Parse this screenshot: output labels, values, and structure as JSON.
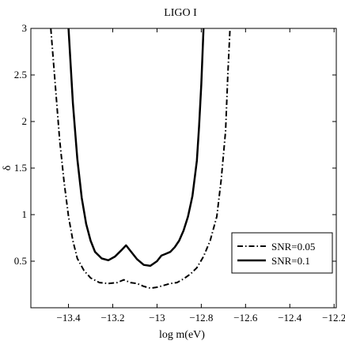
{
  "chart_data": {
    "type": "line",
    "title": "LIGO I",
    "xlabel": "log m(eV)",
    "ylabel": "δ",
    "xlim": [
      -13.57,
      -12.19
    ],
    "ylim": [
      0.0,
      3.0
    ],
    "xticks": [
      -13.4,
      -13.2,
      -13.0,
      -12.8,
      -12.6,
      -12.4,
      -12.2
    ],
    "xtick_labels": [
      "−13.4",
      "−13.2",
      "−13",
      "−12.8",
      "−12.6",
      "−12.4",
      "−12.2"
    ],
    "yticks": [
      0.5,
      1.0,
      1.5,
      2.0,
      2.5,
      3.0
    ],
    "ytick_labels": [
      "0.5",
      "1",
      "1.5",
      "2",
      "2.5",
      "3"
    ],
    "grid": false,
    "legend_position": "lower-right",
    "series": [
      {
        "name": "SNR=0.05",
        "style": "dashdot",
        "x": [
          -13.48,
          -13.46,
          -13.44,
          -13.42,
          -13.4,
          -13.38,
          -13.36,
          -13.33,
          -13.3,
          -13.26,
          -13.22,
          -13.18,
          -13.15,
          -13.12,
          -13.09,
          -13.06,
          -13.03,
          -13.0,
          -12.97,
          -12.94,
          -12.91,
          -12.88,
          -12.85,
          -12.82,
          -12.79,
          -12.76,
          -12.73,
          -12.71,
          -12.69,
          -12.68,
          -12.67
        ],
        "y": [
          3.0,
          2.4,
          1.8,
          1.35,
          0.98,
          0.72,
          0.53,
          0.4,
          0.32,
          0.27,
          0.26,
          0.27,
          0.3,
          0.27,
          0.26,
          0.23,
          0.21,
          0.22,
          0.24,
          0.26,
          0.27,
          0.31,
          0.36,
          0.43,
          0.55,
          0.72,
          0.98,
          1.38,
          1.9,
          2.5,
          3.0
        ]
      },
      {
        "name": "SNR=0.1",
        "style": "solid",
        "x": [
          -13.4,
          -13.38,
          -13.36,
          -13.34,
          -13.32,
          -13.3,
          -13.28,
          -13.25,
          -13.22,
          -13.19,
          -13.16,
          -13.14,
          -13.12,
          -13.09,
          -13.06,
          -13.03,
          -13.0,
          -12.98,
          -12.96,
          -12.94,
          -12.92,
          -12.9,
          -12.88,
          -12.86,
          -12.84,
          -12.82,
          -12.81,
          -12.8,
          -12.795,
          -12.79
        ],
        "y": [
          3.0,
          2.2,
          1.6,
          1.18,
          0.9,
          0.72,
          0.6,
          0.53,
          0.51,
          0.55,
          0.62,
          0.67,
          0.61,
          0.52,
          0.46,
          0.45,
          0.5,
          0.56,
          0.58,
          0.6,
          0.65,
          0.72,
          0.83,
          0.98,
          1.2,
          1.58,
          1.95,
          2.4,
          2.7,
          3.0
        ]
      }
    ]
  }
}
